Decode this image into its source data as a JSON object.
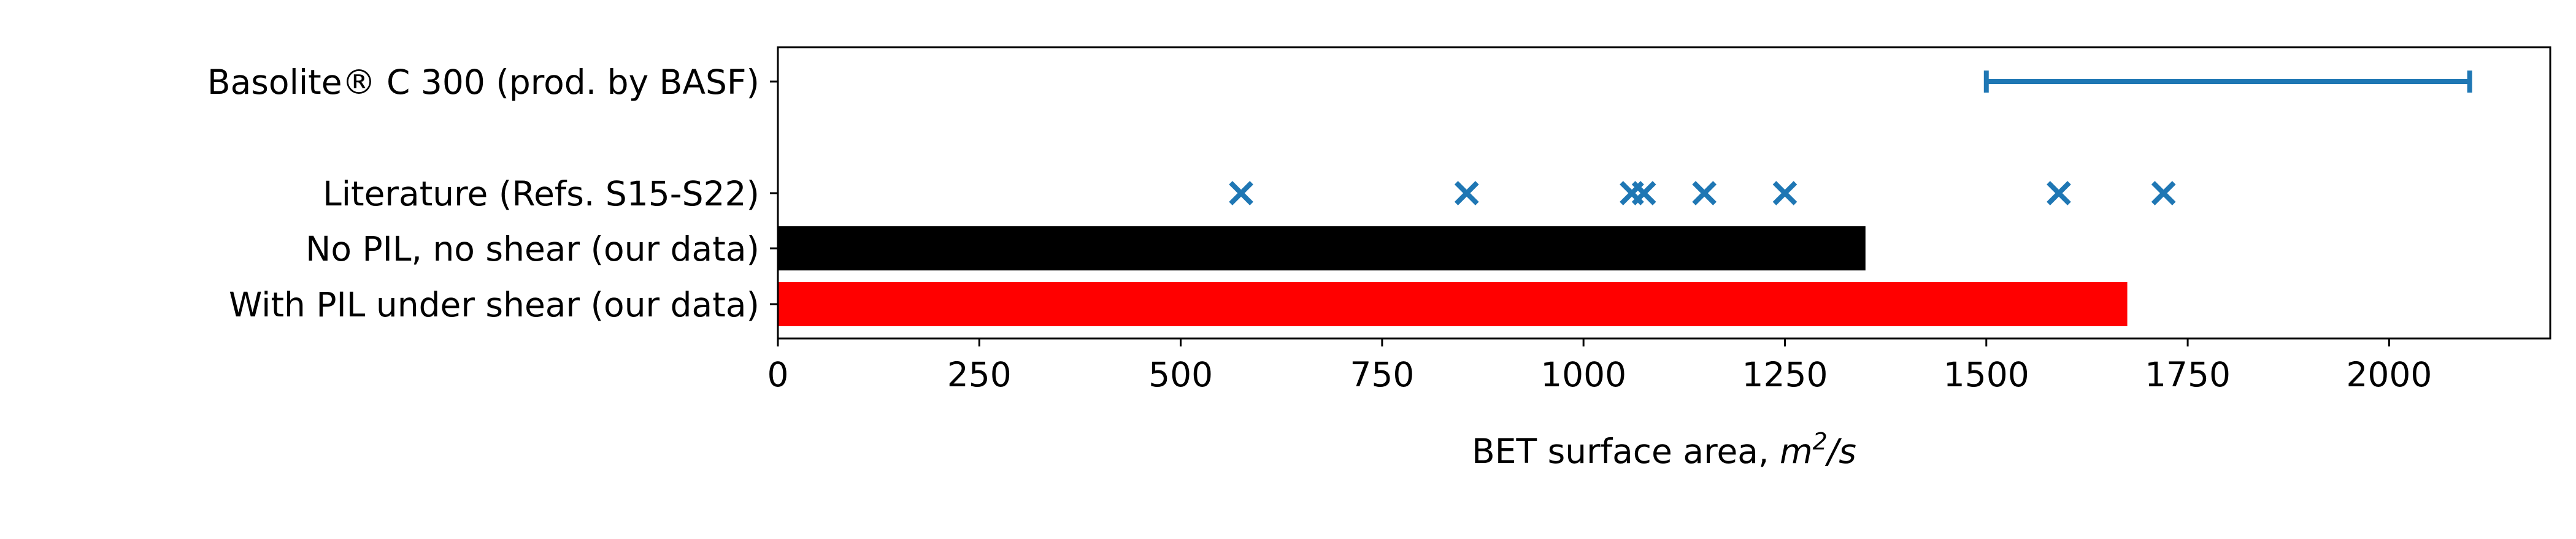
{
  "chart_data": {
    "type": "bar",
    "orientation": "horizontal",
    "xlabel_text": "BET surface area, ",
    "xlabel_unit_base": "m",
    "xlabel_unit_sup": "2",
    "xlabel_unit_tail": "/s",
    "xlim": [
      0,
      2200
    ],
    "xticks": [
      0,
      250,
      500,
      750,
      1000,
      1250,
      1500,
      1750,
      2000
    ],
    "grid": false,
    "legend": "none",
    "categories": [
      "With PIL under shear (our data)",
      "No PIL, no shear (our data)",
      "Literature (Refs. S15-S22)",
      "Basolite® C 300 (prod. by BASF)"
    ],
    "bars": [
      {
        "category": "With PIL under shear (our data)",
        "value": 1675,
        "color": "#ff0000"
      },
      {
        "category": "No PIL, no shear (our data)",
        "value": 1350,
        "color": "#000000"
      }
    ],
    "scatter": {
      "category": "Literature (Refs. S15-S22)",
      "marker": "x",
      "color": "#1f77b4",
      "x": [
        575,
        855,
        1060,
        1075,
        1150,
        1250,
        1590,
        1720
      ]
    },
    "range": {
      "category": "Basolite® C 300 (prod. by BASF)",
      "min": 1500,
      "max": 2100,
      "color": "#1f77b4"
    }
  }
}
